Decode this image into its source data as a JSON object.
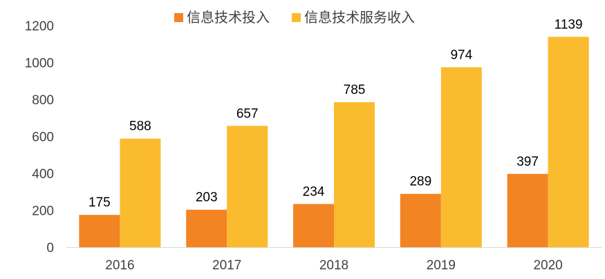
{
  "chart_data": {
    "type": "bar",
    "categories": [
      "2016",
      "2017",
      "2018",
      "2019",
      "2020"
    ],
    "series": [
      {
        "name": "信息技术投入",
        "color": "#f28424",
        "values": [
          175,
          203,
          234,
          289,
          397
        ]
      },
      {
        "name": "信息技术服务收入",
        "color": "#fbbb2f",
        "values": [
          588,
          657,
          785,
          974,
          1139
        ]
      }
    ],
    "ylim": [
      0,
      1200
    ],
    "yticks": [
      0,
      200,
      400,
      600,
      800,
      1000,
      1200
    ],
    "grid": false,
    "legend_position": "top",
    "title": "",
    "xlabel": "",
    "ylabel": ""
  }
}
